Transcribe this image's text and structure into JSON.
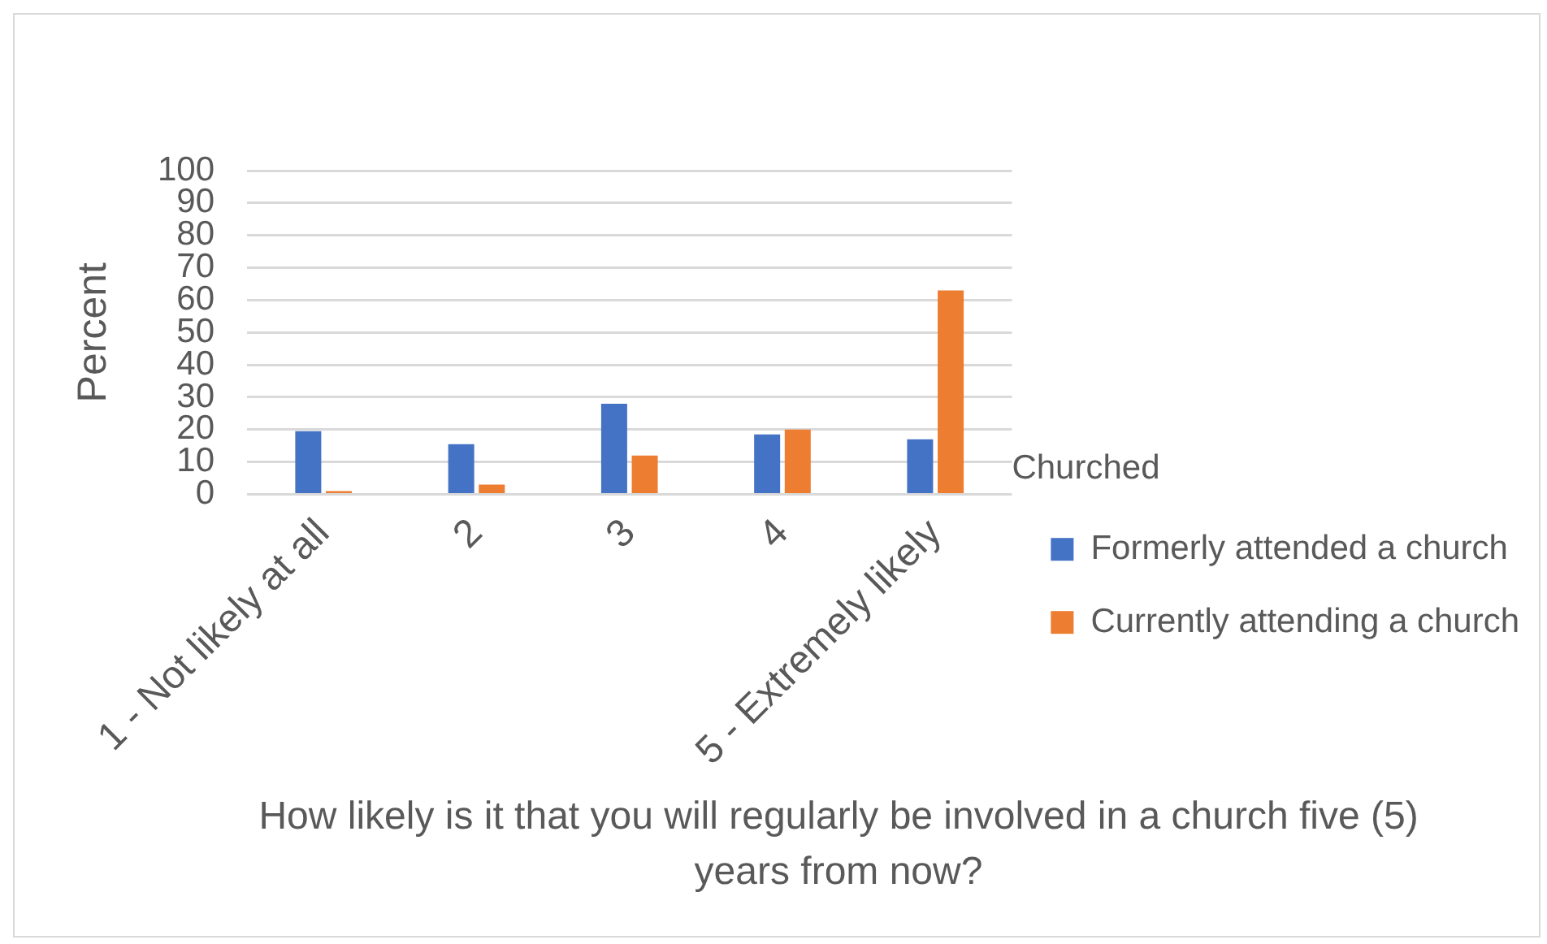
{
  "chart_data": {
    "type": "bar",
    "categories": [
      "1 - Not likely at all",
      "2",
      "3",
      "4",
      "5 - Extremely likely"
    ],
    "series": [
      {
        "name": "Formerly attended a church",
        "color": "#4472c4",
        "values": [
          19.5,
          15.5,
          28,
          18.5,
          17
        ]
      },
      {
        "name": "Currently attending a church",
        "color": "#ed7d31",
        "values": [
          1,
          3,
          12,
          20,
          63
        ]
      }
    ],
    "ylim": [
      0,
      100
    ],
    "yticks": [
      0,
      10,
      20,
      30,
      40,
      50,
      60,
      70,
      80,
      90,
      100
    ],
    "grid": "y",
    "legend": "right",
    "legend_title": "Churched",
    "ylabel": "Percent",
    "xlabel": "How likely is it that you will regularly be involved in a church five (5) years from now?"
  }
}
